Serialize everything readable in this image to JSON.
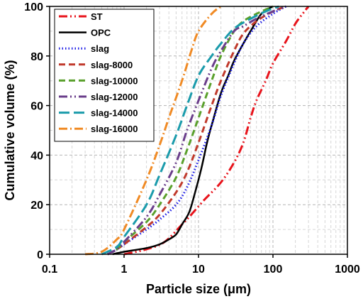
{
  "chart_data": {
    "type": "line",
    "title": "",
    "xlabel": "Particle size (μm)",
    "ylabel": "Cumulative volume (%)",
    "xscale": "log",
    "xlim": [
      0.1,
      1000
    ],
    "ylim": [
      0,
      100
    ],
    "x_ticks": [
      0.1,
      1,
      10,
      100,
      1000
    ],
    "x_tick_labels": [
      "0.1",
      "1",
      "10",
      "100",
      "1000"
    ],
    "y_ticks": [
      0,
      20,
      40,
      60,
      80,
      100
    ],
    "y_tick_labels": [
      "0",
      "20",
      "40",
      "60",
      "80",
      "100"
    ],
    "grid": "dashed, major and minor",
    "legend_position": "top-left",
    "series": [
      {
        "name": "ST",
        "color": "#e8131b",
        "dash": "dash-dot-dot",
        "points": [
          [
            1,
            0
          ],
          [
            2,
            2
          ],
          [
            3.5,
            5
          ],
          [
            6,
            12
          ],
          [
            8,
            16
          ],
          [
            12,
            22
          ],
          [
            20,
            29
          ],
          [
            30,
            37
          ],
          [
            40,
            45
          ],
          [
            50,
            55
          ],
          [
            60,
            62
          ],
          [
            80,
            70
          ],
          [
            100,
            77
          ],
          [
            150,
            86
          ],
          [
            200,
            93
          ],
          [
            250,
            97
          ],
          [
            300,
            100
          ]
        ]
      },
      {
        "name": "OPC",
        "color": "#000000",
        "dash": "solid",
        "points": [
          [
            0.7,
            0
          ],
          [
            1,
            1
          ],
          [
            2,
            2.5
          ],
          [
            3,
            4
          ],
          [
            4,
            6
          ],
          [
            5,
            8
          ],
          [
            6,
            12
          ],
          [
            7.5,
            17
          ],
          [
            9,
            25
          ],
          [
            11,
            35
          ],
          [
            13,
            45
          ],
          [
            15,
            52
          ],
          [
            20,
            65
          ],
          [
            25,
            72
          ],
          [
            30,
            78
          ],
          [
            40,
            85
          ],
          [
            50,
            90
          ],
          [
            70,
            97
          ],
          [
            100,
            100
          ]
        ]
      },
      {
        "name": "slag",
        "color": "#1a1ae6",
        "dash": "dotted",
        "points": [
          [
            0.6,
            0
          ],
          [
            0.8,
            2
          ],
          [
            1,
            4
          ],
          [
            2,
            10
          ],
          [
            3,
            14
          ],
          [
            5,
            20
          ],
          [
            7,
            27
          ],
          [
            10,
            38
          ],
          [
            15,
            52
          ],
          [
            20,
            64
          ],
          [
            30,
            77
          ],
          [
            40,
            85
          ],
          [
            60,
            92
          ],
          [
            100,
            97
          ],
          [
            150,
            100
          ]
        ]
      },
      {
        "name": "slag-8000",
        "color": "#c0392b",
        "dash": "dashed",
        "points": [
          [
            0.6,
            0
          ],
          [
            0.8,
            2
          ],
          [
            1,
            4
          ],
          [
            2,
            11
          ],
          [
            3,
            16
          ],
          [
            5,
            25
          ],
          [
            7,
            33
          ],
          [
            10,
            45
          ],
          [
            15,
            60
          ],
          [
            20,
            70
          ],
          [
            30,
            82
          ],
          [
            40,
            89
          ],
          [
            60,
            94
          ],
          [
            100,
            98
          ],
          [
            150,
            100
          ]
        ]
      },
      {
        "name": "slag-10000",
        "color": "#5aa02c",
        "dash": "dashed",
        "points": [
          [
            0.6,
            0
          ],
          [
            0.8,
            2
          ],
          [
            1,
            5
          ],
          [
            2,
            13
          ],
          [
            3,
            20
          ],
          [
            5,
            31
          ],
          [
            7,
            42
          ],
          [
            10,
            55
          ],
          [
            15,
            70
          ],
          [
            20,
            80
          ],
          [
            30,
            90
          ],
          [
            40,
            94
          ],
          [
            60,
            97
          ],
          [
            100,
            100
          ]
        ]
      },
      {
        "name": "slag-12000",
        "color": "#6a3d8a",
        "dash": "dash-dot-dot",
        "points": [
          [
            0.6,
            0
          ],
          [
            0.8,
            2
          ],
          [
            1,
            5
          ],
          [
            2,
            15
          ],
          [
            3,
            24
          ],
          [
            5,
            37
          ],
          [
            7,
            50
          ],
          [
            10,
            62
          ],
          [
            15,
            75
          ],
          [
            20,
            82
          ],
          [
            30,
            90
          ],
          [
            40,
            92
          ],
          [
            60,
            95
          ],
          [
            100,
            98
          ],
          [
            150,
            100
          ]
        ]
      },
      {
        "name": "slag-14000",
        "color": "#1a9bab",
        "dash": "long-dash",
        "points": [
          [
            0.5,
            0
          ],
          [
            0.8,
            3
          ],
          [
            1,
            7
          ],
          [
            2,
            20
          ],
          [
            3,
            32
          ],
          [
            5,
            48
          ],
          [
            7,
            60
          ],
          [
            10,
            72
          ],
          [
            15,
            80
          ],
          [
            20,
            85
          ],
          [
            30,
            91
          ],
          [
            50,
            95
          ],
          [
            80,
            98
          ],
          [
            120,
            100
          ]
        ]
      },
      {
        "name": "slag-16000",
        "color": "#f08a24",
        "dash": "dash-dot",
        "points": [
          [
            0.3,
            0
          ],
          [
            0.5,
            1
          ],
          [
            0.8,
            6
          ],
          [
            1,
            10
          ],
          [
            2,
            30
          ],
          [
            3,
            44
          ],
          [
            4,
            55
          ],
          [
            6,
            70
          ],
          [
            8,
            82
          ],
          [
            10,
            90
          ],
          [
            15,
            97
          ],
          [
            20,
            100
          ]
        ]
      }
    ]
  }
}
